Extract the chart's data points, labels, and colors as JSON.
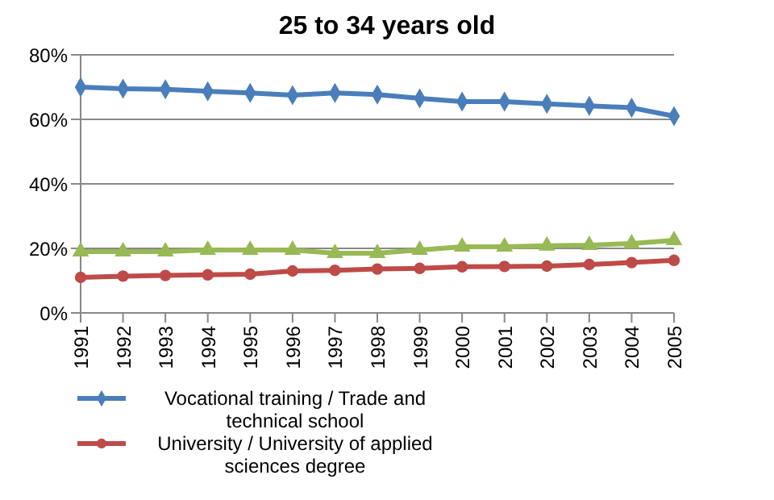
{
  "chart_data": {
    "type": "line",
    "title": "25 to 34 years old",
    "categories": [
      "1991",
      "1992",
      "1993",
      "1994",
      "1995",
      "1996",
      "1997",
      "1998",
      "1999",
      "2000",
      "2001",
      "2002",
      "2003",
      "2004",
      "2005"
    ],
    "series": [
      {
        "name": "Vocational training / Trade and technical school",
        "color": "#4a7ebb",
        "marker": "diamond",
        "values": [
          70,
          69.5,
          69.3,
          68.7,
          68.2,
          67.5,
          68.2,
          67.7,
          66.5,
          65.5,
          65.5,
          64.8,
          64.2,
          63.6,
          61
        ]
      },
      {
        "name": "University / University of applied sciences degree",
        "color": "#be4b48",
        "marker": "circle",
        "values": [
          11,
          11.4,
          11.6,
          11.8,
          12,
          13,
          13.2,
          13.6,
          13.8,
          14.3,
          14.4,
          14.5,
          15,
          15.6,
          16.3
        ]
      },
      {
        "color": "#98b954",
        "marker": "triangle",
        "values": [
          19,
          19,
          19,
          19.5,
          19.5,
          19.5,
          18.5,
          18.5,
          19.5,
          20.5,
          20.5,
          20.8,
          21,
          21.5,
          22.5
        ]
      }
    ],
    "ylim": [
      0,
      80
    ],
    "yticks": [
      {
        "value": 0,
        "label": "0%"
      },
      {
        "value": 20,
        "label": "20%"
      },
      {
        "value": 40,
        "label": "40%"
      },
      {
        "value": 60,
        "label": "60%"
      },
      {
        "value": 80,
        "label": "80%"
      }
    ],
    "grid": "y",
    "legend": "bottom left",
    "line_style": "solid"
  }
}
